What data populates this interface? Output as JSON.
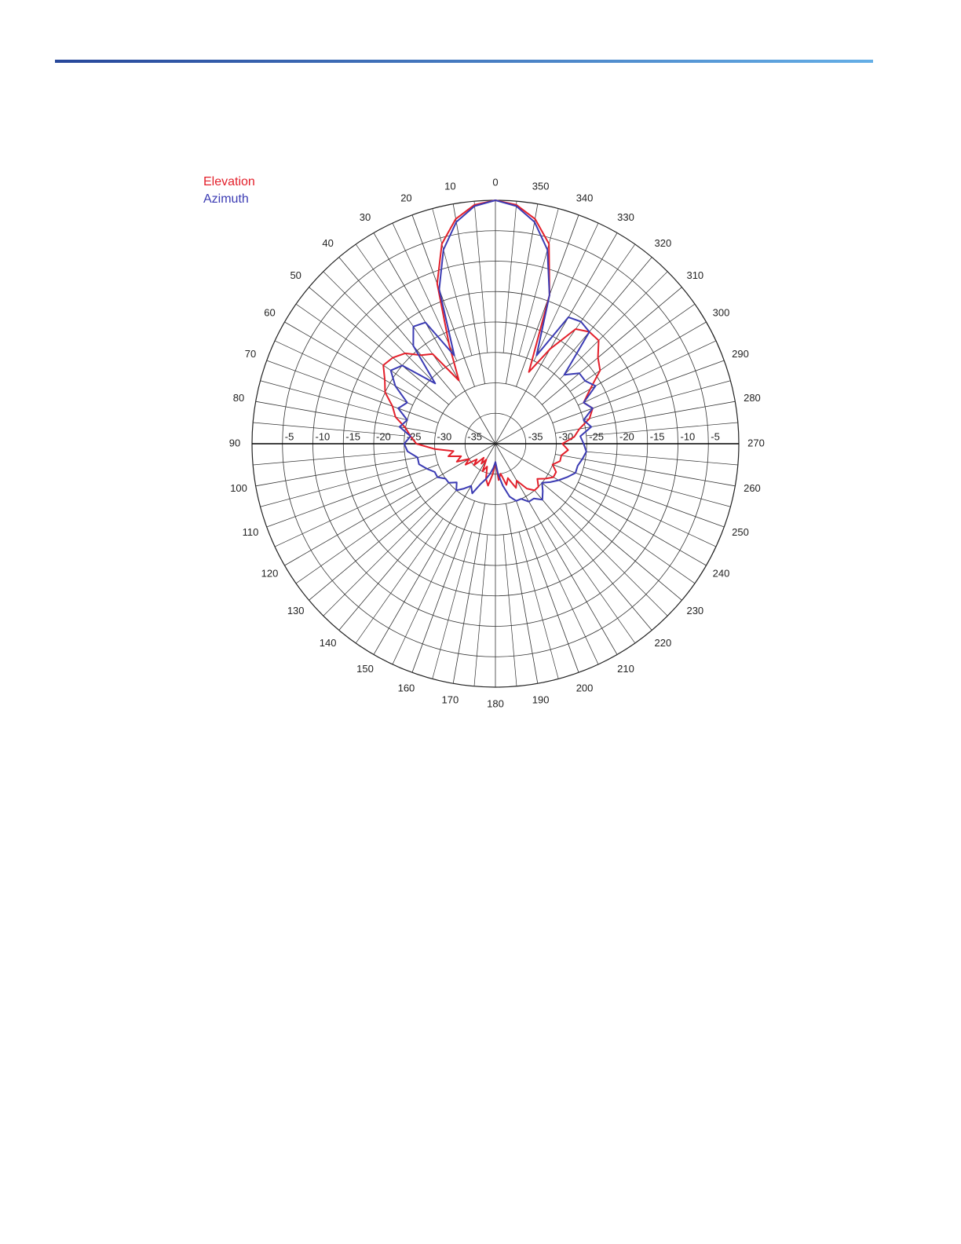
{
  "chart_data": {
    "type": "polar",
    "x": [
      0,
      5,
      10,
      15,
      20,
      25,
      30,
      35,
      40,
      45,
      50,
      55,
      60,
      65,
      70,
      75,
      80,
      85,
      90,
      95,
      100,
      105,
      110,
      115,
      120,
      125,
      130,
      135,
      140,
      145,
      150,
      155,
      160,
      165,
      170,
      175,
      180,
      185,
      190,
      195,
      200,
      205,
      210,
      215,
      220,
      225,
      230,
      235,
      240,
      245,
      250,
      255,
      260,
      265,
      270,
      275,
      280,
      285,
      290,
      295,
      300,
      305,
      310,
      315,
      320,
      325,
      330,
      335,
      340,
      345,
      350,
      355
    ],
    "series": [
      {
        "name": "Elevation",
        "color": "#e3202b",
        "values": [
          0,
          -0.6,
          -2.5,
          -6,
          -12,
          -22,
          -28,
          -22,
          -21,
          -19,
          -18,
          -17.5,
          -19,
          -20,
          -22,
          -23,
          -25,
          -26,
          -27,
          -30,
          -33,
          -32,
          -34,
          -33,
          -35,
          -34,
          -36,
          -35,
          -37,
          -36,
          -37,
          -35,
          -36,
          -34,
          -33,
          -35,
          -37,
          -34,
          -35,
          -33,
          -34,
          -32,
          -33,
          -31,
          -30,
          -30,
          -31,
          -30,
          -29,
          -29,
          -30,
          -29,
          -29,
          -28,
          -29,
          -27,
          -26,
          -24,
          -23,
          -24,
          -22,
          -19,
          -18,
          -16,
          -16,
          -17,
          -22,
          -27,
          -14,
          -6,
          -2.5,
          -0.6
        ]
      },
      {
        "name": "Azimuth",
        "color": "#3b3bb3",
        "values": [
          0,
          -0.8,
          -3,
          -7,
          -13,
          -24,
          -17,
          -16.5,
          -19,
          -26,
          -20,
          -19,
          -21,
          -24,
          -23,
          -25,
          -24,
          -26,
          -25,
          -25.5,
          -27,
          -27,
          -28,
          -29,
          -29,
          -30,
          -30,
          -31,
          -30,
          -31,
          -32,
          -31,
          -33,
          -34,
          -35,
          -36,
          -37,
          -35,
          -33,
          -31,
          -30,
          -30,
          -29,
          -29,
          -28,
          -29,
          -30,
          -29,
          -28,
          -27,
          -26,
          -26,
          -25.5,
          -25,
          -25.5,
          -26,
          -24,
          -25,
          -23,
          -24,
          -21,
          -22,
          -22,
          -24,
          -16,
          -15.5,
          -16,
          -24,
          -14,
          -7,
          -3,
          -0.8
        ]
      }
    ],
    "xticks": [
      0,
      10,
      20,
      30,
      40,
      50,
      60,
      70,
      80,
      90,
      100,
      110,
      120,
      130,
      140,
      150,
      160,
      170,
      180,
      190,
      200,
      210,
      220,
      230,
      240,
      250,
      260,
      270,
      280,
      290,
      300,
      310,
      320,
      330,
      340,
      350
    ],
    "ylim": [
      -40,
      0
    ],
    "yticks": [
      -35,
      -30,
      -25,
      -20,
      -15,
      -10,
      -5
    ],
    "grid": true
  }
}
